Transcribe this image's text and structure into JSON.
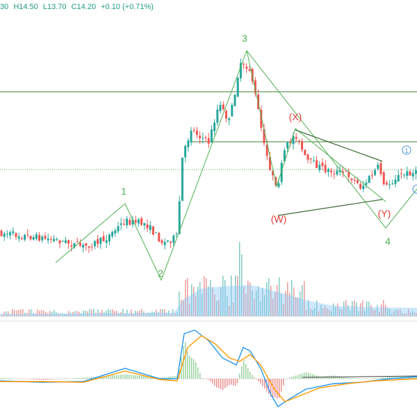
{
  "ohlc_header": {
    "open": "30",
    "high": "H14.50",
    "low": "L13.70",
    "close": "C14.20",
    "change": "+0.10 (+0.71%)"
  },
  "colors": {
    "bull": "#26a69a",
    "bear": "#ef5350",
    "wave_green": "#4caf50",
    "wave_red": "#e53935",
    "hline": "#3a7d2c",
    "trendline": "#3c6b35",
    "macd": "#2196f3",
    "signal": "#ff9800",
    "volume_ma": "#90caf9",
    "dotted": "#4caf50",
    "circle_blue": "#4a90d9"
  },
  "chart_data": {
    "type": "candlestick",
    "wave_labels": [
      {
        "text": "1",
        "color": "green"
      },
      {
        "text": "2",
        "color": "green"
      },
      {
        "text": "3",
        "color": "green"
      },
      {
        "text": "4",
        "color": "green"
      },
      {
        "text": "(X)",
        "color": "red"
      },
      {
        "text": "(W)",
        "color": "red"
      },
      {
        "text": "(Y)",
        "color": "red"
      },
      {
        "text": "1",
        "color": "blue",
        "circled": true
      }
    ],
    "panes": [
      "price",
      "volume",
      "macd"
    ],
    "grid": false
  }
}
